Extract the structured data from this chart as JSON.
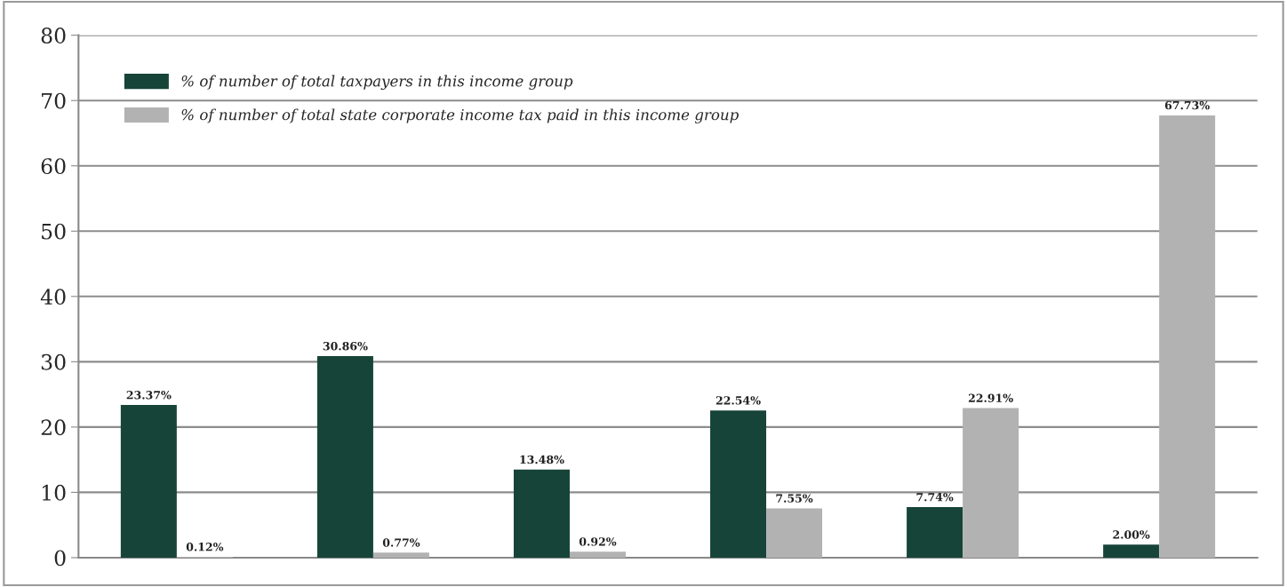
{
  "chart_data": {
    "type": "bar",
    "categories": [
      null,
      null,
      null,
      null,
      null,
      null
    ],
    "series": [
      {
        "name": "% of number of total taxpayers in this income group",
        "color": "#174438",
        "values": [
          23.37,
          30.86,
          13.48,
          22.54,
          7.74,
          2.0
        ],
        "value_labels": [
          "23.37%",
          "30.86%",
          "13.48%",
          "22.54%",
          "7.74%",
          "2.00%"
        ]
      },
      {
        "name": "% of number of total state corporate income tax paid in this income group",
        "color": "#b2b2b2",
        "values": [
          0.12,
          0.77,
          0.92,
          7.55,
          22.91,
          67.73
        ],
        "value_labels": [
          "0.12%",
          "0.77%",
          "0.92%",
          "7.55%",
          "22.91%",
          "67.73%"
        ]
      }
    ],
    "ylim": [
      0,
      80
    ],
    "yticks": [
      0,
      10,
      20,
      30,
      40,
      50,
      60,
      70,
      80
    ],
    "grid": "y",
    "legend": "top left"
  }
}
